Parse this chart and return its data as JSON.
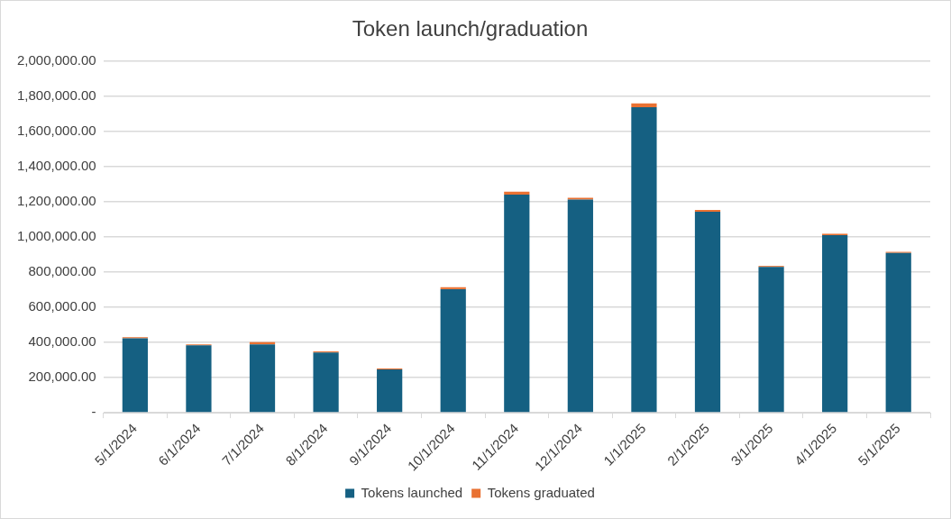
{
  "chart_data": {
    "type": "bar",
    "title": "Token launch/graduation",
    "stacked": true,
    "categories": [
      "5/1/2024",
      "6/1/2024",
      "7/1/2024",
      "8/1/2024",
      "9/1/2024",
      "10/1/2024",
      "11/1/2024",
      "12/1/2024",
      "1/1/2025",
      "2/1/2025",
      "3/1/2025",
      "4/1/2025",
      "5/1/2025"
    ],
    "series": [
      {
        "name": "Tokens launched",
        "color": "#156082",
        "values": [
          423000,
          383000,
          389000,
          343000,
          246000,
          703000,
          1240000,
          1212000,
          1737000,
          1143000,
          829000,
          1010000,
          909000
        ]
      },
      {
        "name": "Tokens graduated",
        "color": "#e97132",
        "values": [
          6000,
          6000,
          13000,
          6000,
          6000,
          11000,
          17000,
          11000,
          23000,
          11000,
          6000,
          8000,
          6000
        ]
      }
    ],
    "ylim": [
      0,
      2000000
    ],
    "yticks": [
      {
        "value": 0,
        "label": "-"
      },
      {
        "value": 200000,
        "label": "200,000.00"
      },
      {
        "value": 400000,
        "label": "400,000.00"
      },
      {
        "value": 600000,
        "label": "600,000.00"
      },
      {
        "value": 800000,
        "label": "800,000.00"
      },
      {
        "value": 1000000,
        "label": "1,000,000.00"
      },
      {
        "value": 1200000,
        "label": "1,200,000.00"
      },
      {
        "value": 1400000,
        "label": "1,400,000.00"
      },
      {
        "value": 1600000,
        "label": "1,600,000.00"
      },
      {
        "value": 1800000,
        "label": "1,800,000.00"
      },
      {
        "value": 2000000,
        "label": "2,000,000.00"
      }
    ],
    "grid": "y",
    "legend": "bottom"
  }
}
